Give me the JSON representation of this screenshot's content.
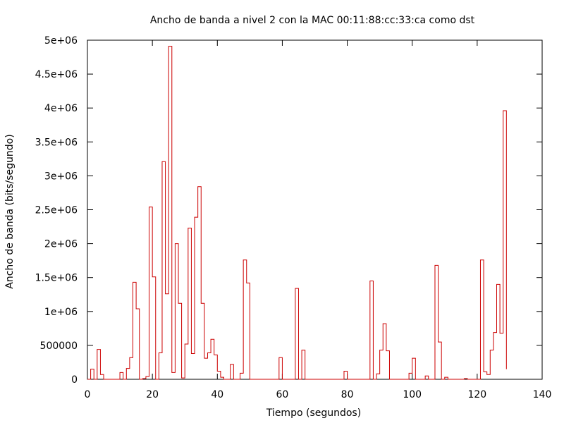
{
  "chart_data": {
    "type": "line",
    "style": "step",
    "title": "Ancho de banda a nivel 2 con la MAC 00:11:88:cc:33:ca como dst",
    "xlabel": "Tiempo (segundos)",
    "ylabel": "Ancho de banda (bits/segundo)",
    "xlim": [
      0,
      140
    ],
    "ylim": [
      0,
      5000000
    ],
    "x_ticks": [
      0,
      20,
      40,
      60,
      80,
      100,
      120,
      140
    ],
    "x_tick_labels": [
      "0",
      "20",
      "40",
      "60",
      "80",
      "100",
      "120",
      "140"
    ],
    "y_ticks": [
      0,
      500000,
      1000000,
      1500000,
      2000000,
      2500000,
      3000000,
      3500000,
      4000000,
      4500000,
      5000000
    ],
    "y_tick_labels": [
      "0",
      "500000",
      "1e+06",
      "1.5e+06",
      "2e+06",
      "2.5e+06",
      "3e+06",
      "3.5e+06",
      "4e+06",
      "4.5e+06",
      "5e+06"
    ],
    "grid": false,
    "series_color": "#cc0000",
    "series": [
      {
        "x": [
          0,
          1,
          2,
          3,
          4,
          5,
          6,
          7,
          8,
          9,
          10,
          11,
          12,
          13,
          14,
          15,
          16,
          17,
          18,
          19,
          20,
          21,
          22,
          23,
          24,
          25,
          26,
          27,
          28,
          29,
          30,
          31,
          32,
          33,
          34,
          35,
          36,
          37,
          38,
          39,
          40,
          41,
          42,
          43,
          44,
          45,
          46,
          47,
          48,
          49,
          50,
          51,
          52,
          53,
          54,
          55,
          56,
          57,
          58,
          59,
          60,
          61,
          62,
          63,
          64,
          65,
          66,
          67,
          68,
          69,
          70,
          71,
          72,
          73,
          74,
          75,
          76,
          77,
          78,
          79,
          80,
          81,
          82,
          83,
          84,
          85,
          86,
          87,
          88,
          89,
          90,
          91,
          92,
          93,
          94,
          95,
          96,
          97,
          98,
          99,
          100,
          101,
          102,
          103,
          104,
          105,
          106,
          107,
          108,
          109,
          110,
          111,
          112,
          113,
          114,
          115,
          116,
          117,
          118,
          119,
          120,
          121,
          122,
          123,
          124,
          125,
          126,
          127,
          128,
          129
        ],
        "y": [
          0,
          150000,
          0,
          440000,
          70000,
          0,
          0,
          0,
          0,
          0,
          100000,
          0,
          160000,
          320000,
          1430000,
          1040000,
          0,
          10000,
          40000,
          2540000,
          1510000,
          0,
          390000,
          3210000,
          1260000,
          4910000,
          100000,
          2000000,
          1120000,
          20000,
          520000,
          2230000,
          380000,
          2390000,
          2840000,
          1120000,
          310000,
          390000,
          590000,
          360000,
          120000,
          30000,
          0,
          0,
          220000,
          0,
          0,
          90000,
          1760000,
          1420000,
          0,
          0,
          0,
          0,
          0,
          0,
          0,
          0,
          0,
          320000,
          0,
          0,
          0,
          0,
          1340000,
          0,
          430000,
          0,
          0,
          0,
          0,
          0,
          0,
          0,
          0,
          0,
          0,
          0,
          0,
          120000,
          0,
          0,
          0,
          0,
          0,
          0,
          0,
          1450000,
          0,
          80000,
          430000,
          820000,
          420000,
          0,
          0,
          0,
          0,
          0,
          0,
          90000,
          310000,
          0,
          0,
          0,
          50000,
          0,
          0,
          1680000,
          550000,
          0,
          30000,
          0,
          0,
          0,
          0,
          0,
          10000,
          0,
          0,
          0,
          0,
          1760000,
          110000,
          70000,
          430000,
          690000,
          1400000,
          680000,
          3960000,
          150000
        ]
      }
    ]
  }
}
